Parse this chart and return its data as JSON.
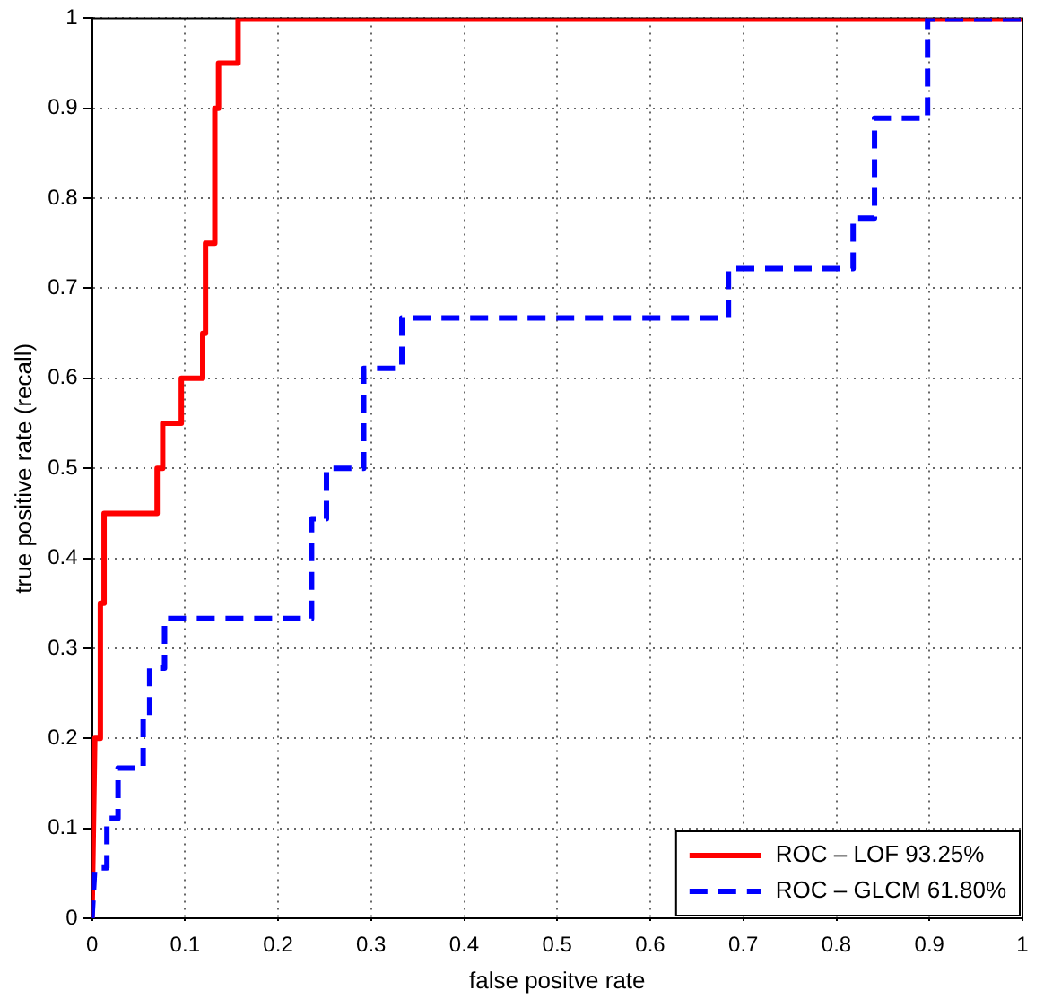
{
  "chart_data": {
    "type": "line",
    "xlabel": "false positve rate",
    "ylabel": "true positive rate (recall)",
    "xlim": [
      0,
      1
    ],
    "ylim": [
      0,
      1
    ],
    "xticks": [
      0,
      0.1,
      0.2,
      0.3,
      0.4,
      0.5,
      0.6,
      0.7,
      0.8,
      0.9,
      1
    ],
    "yticks": [
      0,
      0.1,
      0.2,
      0.3,
      0.4,
      0.5,
      0.6,
      0.7,
      0.8,
      0.9,
      1
    ],
    "grid": true,
    "legend": "bottom right",
    "marker": "none",
    "series": [
      {
        "name": "ROC – LOF 93.25%",
        "color": "#ff0000",
        "line_style": "solid",
        "x": [
          0,
          0.003,
          0.009,
          0.009,
          0.013,
          0.013,
          0.07,
          0.07,
          0.076,
          0.076,
          0.096,
          0.096,
          0.119,
          0.119,
          0.122,
          0.122,
          0.132,
          0.132,
          0.136,
          0.136,
          0.157,
          0.157,
          1
        ],
        "values": [
          0,
          0.2,
          0.2,
          0.35,
          0.35,
          0.45,
          0.45,
          0.5,
          0.5,
          0.55,
          0.55,
          0.6,
          0.6,
          0.65,
          0.65,
          0.75,
          0.75,
          0.9,
          0.9,
          0.95,
          0.95,
          1,
          1
        ]
      },
      {
        "name": "ROC – GLCM 61.80%",
        "color": "#0000ff",
        "line_style": "dashed",
        "x": [
          0,
          0.003,
          0.016,
          0.016,
          0.028,
          0.028,
          0.055,
          0.055,
          0.062,
          0.062,
          0.078,
          0.078,
          0.236,
          0.236,
          0.252,
          0.252,
          0.292,
          0.292,
          0.333,
          0.333,
          0.684,
          0.684,
          0.818,
          0.818,
          0.841,
          0.841,
          0.898,
          0.898,
          1
        ],
        "values": [
          0,
          0.056,
          0.056,
          0.111,
          0.111,
          0.167,
          0.167,
          0.222,
          0.222,
          0.278,
          0.278,
          0.333,
          0.333,
          0.444,
          0.444,
          0.5,
          0.5,
          0.611,
          0.611,
          0.667,
          0.667,
          0.722,
          0.722,
          0.778,
          0.778,
          0.889,
          0.889,
          1,
          1
        ]
      }
    ]
  }
}
